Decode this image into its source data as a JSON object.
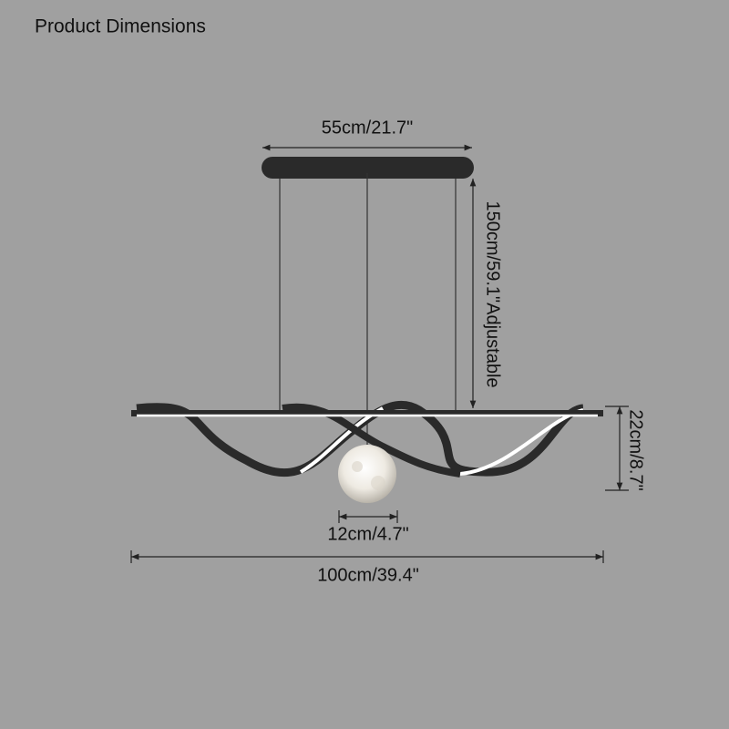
{
  "header": {
    "title": "Product Dimensions"
  },
  "dimensions": {
    "canopy_width": {
      "label": "55cm/21.7\""
    },
    "cable_length": {
      "label": "150cm/59.1\"Adjustable"
    },
    "fixture_height": {
      "label": "22cm/8.7\""
    },
    "globe_diameter": {
      "label": "12cm/4.7\""
    },
    "total_width": {
      "label": "100cm/39.4\""
    }
  }
}
